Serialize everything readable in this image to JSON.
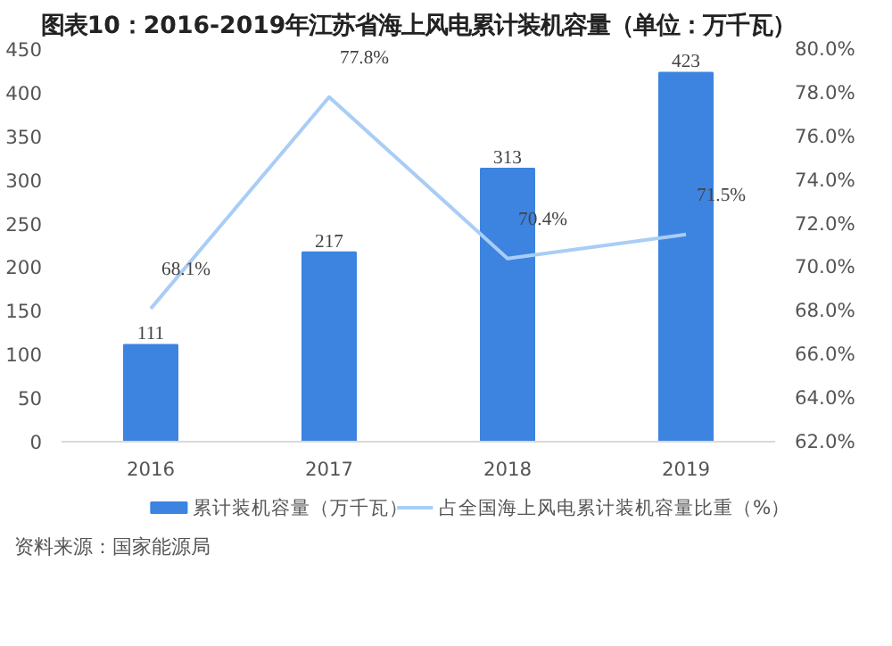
{
  "chart_data": {
    "type": "bar",
    "title": "图表10：2016-2019年江苏省海上风电累计装机容量（单位：万千瓦）",
    "categories": [
      "2016",
      "2017",
      "2018",
      "2019"
    ],
    "series": [
      {
        "name": "累计装机容量（万千瓦）",
        "color": "#3c84e0",
        "values": [
          111,
          217,
          313,
          423
        ],
        "value_labels": [
          "111",
          "217",
          "313",
          "423"
        ]
      },
      {
        "name": "占全国海上风电累计装机容量比重（%）",
        "type": "line",
        "axis": "y2",
        "color": "#a9cdf5",
        "values": [
          68.1,
          77.8,
          70.4,
          71.5
        ],
        "value_labels": [
          "68.1%",
          "77.8%",
          "70.4%",
          "71.5%"
        ]
      }
    ],
    "ylim": [
      0,
      450
    ],
    "yticks": [
      0,
      50,
      100,
      150,
      200,
      250,
      300,
      350,
      400,
      450
    ],
    "y2lim": [
      62,
      80
    ],
    "y2ticks": [
      {
        "value": 62,
        "label": "62.0%"
      },
      {
        "value": 64,
        "label": "64.0%"
      },
      {
        "value": 66,
        "label": "66.0%"
      },
      {
        "value": 68,
        "label": "68.0%"
      },
      {
        "value": 70,
        "label": "70.0%"
      },
      {
        "value": 72,
        "label": "72.0%"
      },
      {
        "value": 74,
        "label": "74.0%"
      },
      {
        "value": 76,
        "label": "76.0%"
      },
      {
        "value": 78,
        "label": "78.0%"
      },
      {
        "value": 80,
        "label": "80.0%"
      }
    ],
    "legend": "bottom",
    "annotations": [
      "资料来源：国家能源局"
    ]
  }
}
